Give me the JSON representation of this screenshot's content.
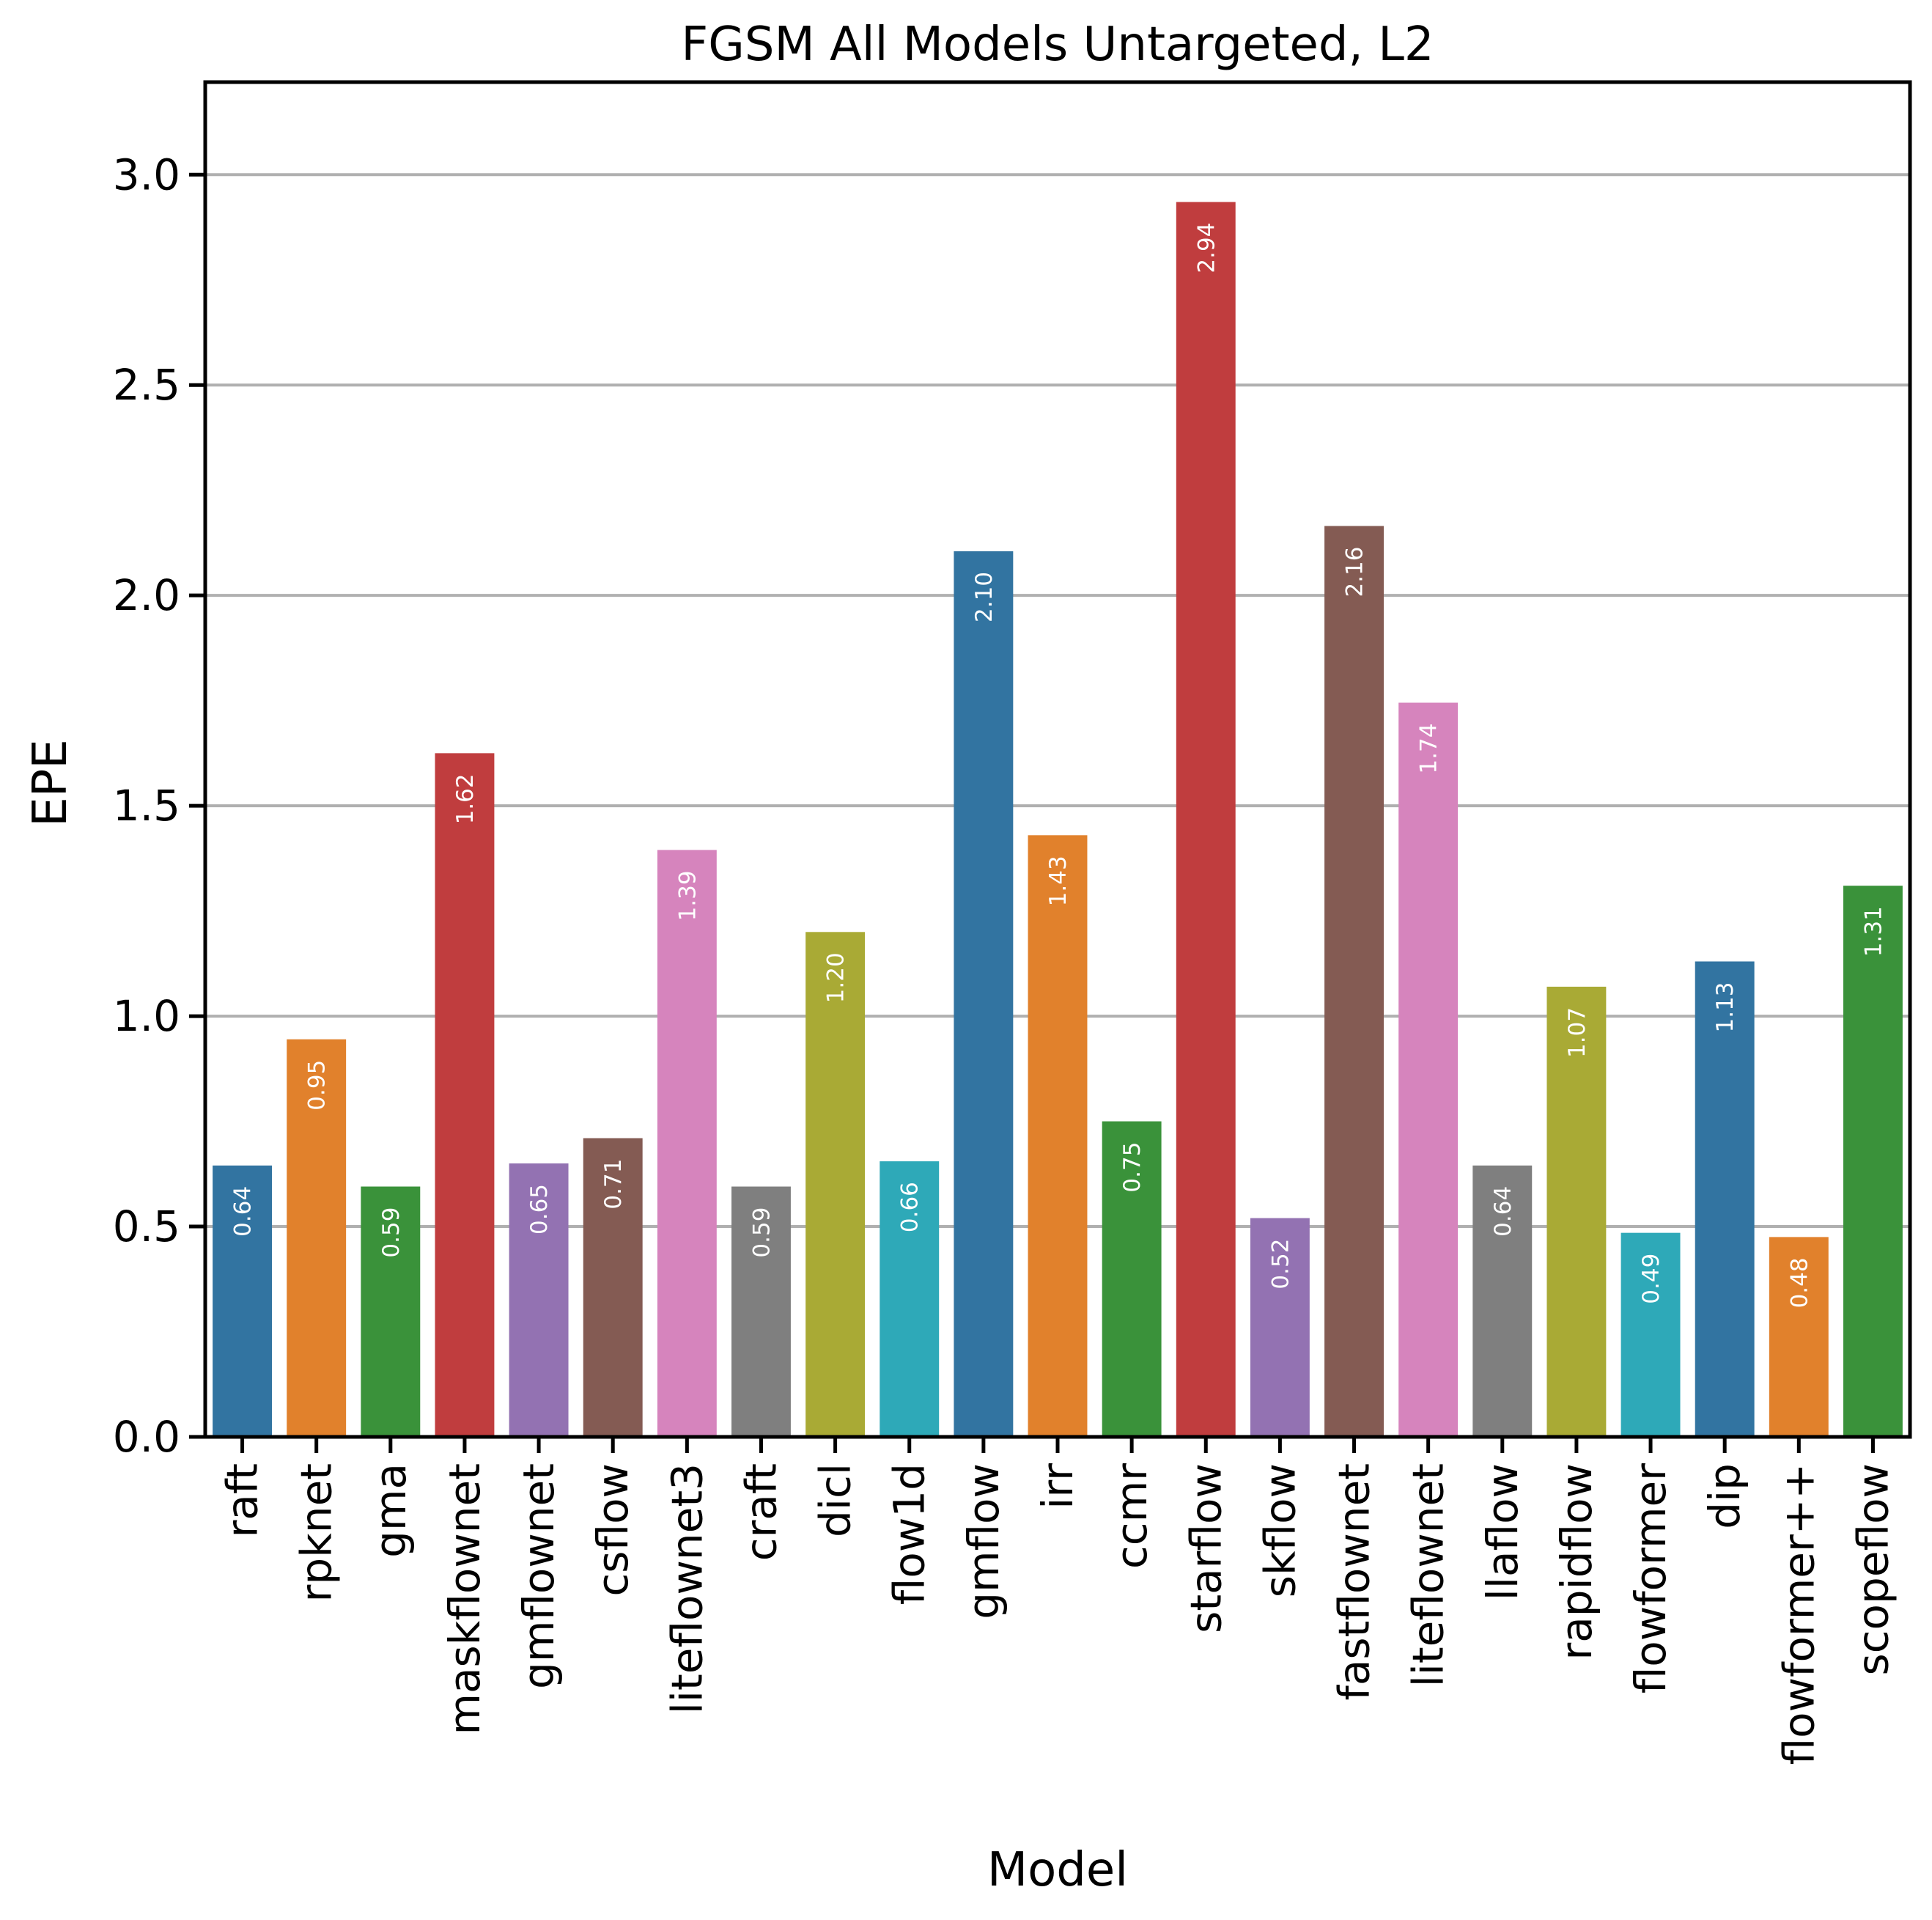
{
  "chart_data": {
    "type": "bar",
    "title": "FGSM All Models Untargeted, L2",
    "xlabel": "Model",
    "ylabel": "EPE",
    "ylim": [
      0,
      3.22
    ],
    "yticks": [
      "0.0",
      "0.5",
      "1.0",
      "1.5",
      "2.0",
      "2.5",
      "3.0"
    ],
    "grid": "horizontal",
    "categories": [
      "raft",
      "rpknet",
      "gma",
      "maskflownet",
      "gmflownet",
      "csflow",
      "liteflownet3",
      "craft",
      "dicl",
      "flow1d",
      "gmflow",
      "irr",
      "ccmr",
      "starflow",
      "skflow",
      "fastflownet",
      "liteflownet",
      "llaflow",
      "rapidflow",
      "flowformer",
      "dip",
      "flowformer++",
      "scopeflow"
    ],
    "values": [
      0.645,
      0.945,
      0.595,
      1.625,
      0.65,
      0.71,
      1.395,
      0.595,
      1.2,
      0.655,
      2.105,
      1.43,
      0.75,
      2.935,
      0.52,
      2.165,
      1.745,
      0.645,
      1.07,
      0.485,
      1.13,
      0.475,
      1.31
    ],
    "value_labels": [
      "0.64",
      "0.95",
      "0.59",
      "1.62",
      "0.65",
      "0.71",
      "1.39",
      "0.59",
      "1.20",
      "0.66",
      "2.10",
      "1.43",
      "0.75",
      "2.94",
      "0.52",
      "2.16",
      "1.74",
      "0.64",
      "1.07",
      "0.49",
      "1.13",
      "0.48",
      "1.31"
    ],
    "colors": [
      "#3274a1",
      "#e1812c",
      "#3a923a",
      "#c03d3e",
      "#9372b2",
      "#845b53",
      "#d684bd",
      "#7f7f7f",
      "#a9aa35",
      "#2ea9b8",
      "#3274a1",
      "#e1812c",
      "#3a923a",
      "#c03d3e",
      "#9372b2",
      "#845b53",
      "#d684bd",
      "#7f7f7f",
      "#a9aa35",
      "#2ea9b8",
      "#3274a1",
      "#e1812c",
      "#3a923a"
    ]
  }
}
